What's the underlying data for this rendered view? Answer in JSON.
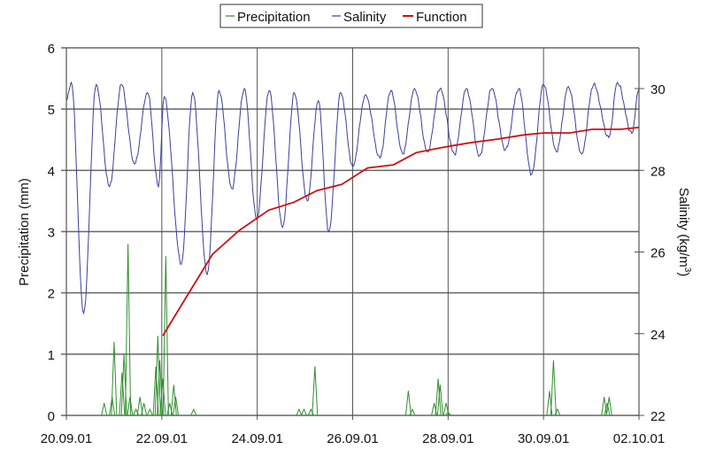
{
  "chart_data": {
    "type": "line",
    "legend": {
      "placement": "top",
      "entries": [
        "Precipitation",
        "Salinity",
        "Function"
      ]
    },
    "xlabel": "",
    "x_ticks": [
      "20.09.01",
      "22.09.01",
      "24.09.01",
      "26.09.01",
      "28.09.01",
      "30.09.01",
      "02.10.01"
    ],
    "xlim": [
      "2001-09-20T00:00",
      "2001-10-02T00:00"
    ],
    "y_left": {
      "label": "Precipitation (mm)",
      "ylim": [
        0,
        6
      ],
      "ticks": [
        "0",
        "1",
        "2",
        "3",
        "4",
        "5",
        "6"
      ]
    },
    "y_right": {
      "label": "Salinity (kg/m",
      "label_sup": "3",
      "label_end": ")",
      "ylim": [
        22,
        30.8
      ],
      "ticks": [
        "22",
        "24",
        "26",
        "28",
        "30"
      ]
    },
    "grid": true,
    "colors": {
      "Precipitation": "#2f8f2f",
      "Salinity": "#3b3f9c",
      "Function": "#cc1111",
      "grid": "#666666"
    },
    "series": [
      {
        "name": "Precipitation",
        "axis": "left",
        "style": "spikes",
        "points": [
          [
            "2001-09-20T19:00",
            0.2
          ],
          [
            "2001-09-20T23:00",
            0.3
          ],
          [
            "2001-09-21T00:00",
            1.2
          ],
          [
            "2001-09-21T04:00",
            0.7
          ],
          [
            "2001-09-21T05:00",
            1.0
          ],
          [
            "2001-09-21T07:00",
            2.8
          ],
          [
            "2001-09-21T08:00",
            0.3
          ],
          [
            "2001-09-21T11:00",
            0.1
          ],
          [
            "2001-09-21T13:00",
            0.3
          ],
          [
            "2001-09-21T15:00",
            0.2
          ],
          [
            "2001-09-21T18:00",
            0.1
          ],
          [
            "2001-09-21T21:00",
            0.8
          ],
          [
            "2001-09-21T22:00",
            1.3
          ],
          [
            "2001-09-21T23:00",
            0.9
          ],
          [
            "2001-09-22T00:30",
            0.6
          ],
          [
            "2001-09-22T02:00",
            2.6
          ],
          [
            "2001-09-22T04:00",
            0.2
          ],
          [
            "2001-09-22T06:00",
            0.5
          ],
          [
            "2001-09-22T07:00",
            0.3
          ],
          [
            "2001-09-22T16:00",
            0.1
          ],
          [
            "2001-09-24T21:00",
            0.1
          ],
          [
            "2001-09-24T23:30",
            0.1
          ],
          [
            "2001-09-25T03:00",
            0.1
          ],
          [
            "2001-09-25T05:00",
            0.8
          ],
          [
            "2001-09-27T04:00",
            0.4
          ],
          [
            "2001-09-27T06:00",
            0.1
          ],
          [
            "2001-09-27T17:00",
            0.2
          ],
          [
            "2001-09-27T19:00",
            0.6
          ],
          [
            "2001-09-27T20:00",
            0.5
          ],
          [
            "2001-09-27T23:00",
            0.2
          ],
          [
            "2001-09-28T00:00",
            0.05
          ],
          [
            "2001-09-30T03:00",
            0.4
          ],
          [
            "2001-09-30T05:00",
            0.9
          ],
          [
            "2001-09-30T07:00",
            0.1
          ],
          [
            "2001-10-01T06:30",
            0.3
          ],
          [
            "2001-10-01T08:00",
            0.2
          ],
          [
            "2001-10-01T09:00",
            0.3
          ]
        ]
      },
      {
        "name": "Salinity",
        "axis": "right",
        "style": "line",
        "points": [
          [
            "2001-09-20T00:00",
            29.7
          ],
          [
            "2001-09-20T02:30",
            30.15
          ],
          [
            "2001-09-20T08:40",
            24.5
          ],
          [
            "2001-09-20T15:00",
            30.1
          ],
          [
            "2001-09-20T21:40",
            27.6
          ],
          [
            "2001-09-21T03:40",
            30.1
          ],
          [
            "2001-09-21T10:20",
            28.15
          ],
          [
            "2001-09-21T16:50",
            29.9
          ],
          [
            "2001-09-21T22:20",
            27.6
          ],
          [
            "2001-09-22T01:10",
            29.8
          ],
          [
            "2001-09-22T09:50",
            25.7
          ],
          [
            "2001-09-22T15:35",
            29.9
          ],
          [
            "2001-09-22T22:50",
            25.45
          ],
          [
            "2001-09-23T04:50",
            29.95
          ],
          [
            "2001-09-23T11:15",
            27.55
          ],
          [
            "2001-09-23T17:30",
            30.0
          ],
          [
            "2001-09-23T23:45",
            26.8
          ],
          [
            "2001-09-24T06:00",
            29.95
          ],
          [
            "2001-09-24T12:45",
            26.6
          ],
          [
            "2001-09-24T18:40",
            29.9
          ],
          [
            "2001-09-25T01:10",
            27.25
          ],
          [
            "2001-09-25T06:40",
            29.7
          ],
          [
            "2001-09-25T12:00",
            26.5
          ],
          [
            "2001-09-25T18:00",
            29.9
          ],
          [
            "2001-09-26T00:00",
            28.1
          ],
          [
            "2001-09-26T06:30",
            29.85
          ],
          [
            "2001-09-26T13:40",
            28.3
          ],
          [
            "2001-09-26T19:10",
            29.95
          ],
          [
            "2001-09-27T01:10",
            28.4
          ],
          [
            "2001-09-27T07:10",
            30.0
          ],
          [
            "2001-09-27T13:40",
            28.45
          ],
          [
            "2001-09-27T19:55",
            30.0
          ],
          [
            "2001-09-28T03:10",
            28.4
          ],
          [
            "2001-09-28T09:10",
            30.0
          ],
          [
            "2001-09-28T15:50",
            28.35
          ],
          [
            "2001-09-28T22:00",
            30.0
          ],
          [
            "2001-09-29T04:50",
            28.5
          ],
          [
            "2001-09-29T11:30",
            30.0
          ],
          [
            "2001-09-29T18:00",
            27.9
          ],
          [
            "2001-09-30T00:00",
            30.1
          ],
          [
            "2001-09-30T06:30",
            28.45
          ],
          [
            "2001-09-30T12:30",
            30.05
          ],
          [
            "2001-09-30T19:10",
            28.4
          ],
          [
            "2001-10-01T01:10",
            30.1
          ],
          [
            "2001-10-01T08:50",
            28.8
          ],
          [
            "2001-10-01T13:10",
            30.15
          ],
          [
            "2001-10-01T20:25",
            28.9
          ],
          [
            "2001-10-02T00:00",
            30.0
          ]
        ]
      },
      {
        "name": "Function",
        "axis": "left",
        "style": "line",
        "points": [
          [
            "2001-09-22T00:30",
            1.3
          ],
          [
            "2001-09-22T11:45",
            1.9
          ],
          [
            "2001-09-23T01:30",
            2.63
          ],
          [
            "2001-09-23T15:00",
            3.02
          ],
          [
            "2001-09-24T05:45",
            3.35
          ],
          [
            "2001-09-24T18:30",
            3.48
          ],
          [
            "2001-09-25T06:00",
            3.67
          ],
          [
            "2001-09-25T18:30",
            3.77
          ],
          [
            "2001-09-26T07:30",
            4.04
          ],
          [
            "2001-09-26T20:30",
            4.09
          ],
          [
            "2001-09-27T08:00",
            4.29
          ],
          [
            "2001-09-27T20:30",
            4.37
          ],
          [
            "2001-09-28T11:00",
            4.45
          ],
          [
            "2001-09-29T00:45",
            4.51
          ],
          [
            "2001-09-29T14:30",
            4.58
          ],
          [
            "2001-09-30T00:00",
            4.61
          ],
          [
            "2001-09-30T13:00",
            4.61
          ],
          [
            "2001-10-01T00:30",
            4.67
          ],
          [
            "2001-10-01T14:30",
            4.67
          ],
          [
            "2001-10-02T00:00",
            4.7
          ]
        ]
      }
    ]
  }
}
